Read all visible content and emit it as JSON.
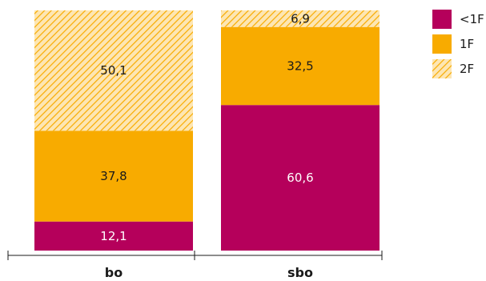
{
  "chart_data": {
    "type": "bar",
    "stacked": true,
    "normalized_percent": true,
    "categories": [
      "bo",
      "sbo"
    ],
    "series": [
      {
        "name": "<1F",
        "values": [
          12.1,
          60.6
        ],
        "labels": [
          "12,1",
          "60,6"
        ],
        "color": "#b5005b",
        "pattern": "solid"
      },
      {
        "name": "1F",
        "values": [
          37.8,
          32.5
        ],
        "labels": [
          "37,8",
          "32,5"
        ],
        "color": "#f8ab00",
        "pattern": "solid"
      },
      {
        "name": "2F",
        "values": [
          50.1,
          6.9
        ],
        "labels": [
          "50,1",
          "6,9"
        ],
        "color": "#f8ab00",
        "pattern": "hatched"
      }
    ],
    "ylim": [
      0,
      100
    ],
    "grid": false,
    "legend": "top-right",
    "title": "",
    "xlabel": "",
    "ylabel": ""
  }
}
